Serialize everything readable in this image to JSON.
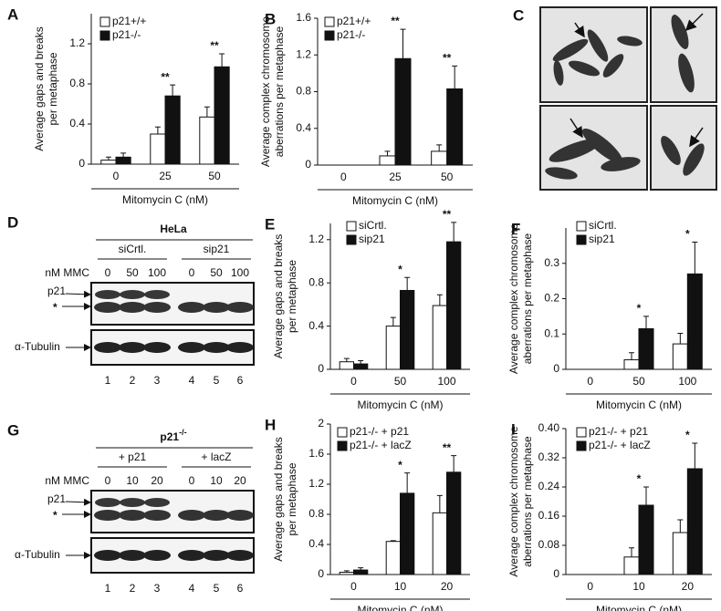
{
  "chart_data": [
    {
      "type": "bar",
      "panel": "A",
      "ylabel": [
        "Average gaps and breaks",
        "per metaphase"
      ],
      "xlabel": "Mitomycin C (nM)",
      "categories": [
        "0",
        "25",
        "50"
      ],
      "ylim": [
        0,
        1.5
      ],
      "yticks": [
        0,
        0.4,
        0.8,
        1.2
      ],
      "series": [
        {
          "name": "p21+/+",
          "color": "#ffffff",
          "values": [
            0.04,
            0.3,
            0.47
          ],
          "errors": [
            0.03,
            0.07,
            0.1
          ]
        },
        {
          "name": "p21-/-",
          "color": "#111111",
          "values": [
            0.07,
            0.68,
            0.97
          ],
          "errors": [
            0.04,
            0.11,
            0.13
          ]
        }
      ],
      "annotations": [
        null,
        "**",
        "**"
      ]
    },
    {
      "type": "bar",
      "panel": "B",
      "ylabel": [
        "Average complex chromosome",
        "aberrations per metaphase"
      ],
      "xlabel": "Mitomycin C (nM)",
      "categories": [
        "0",
        "25",
        "50"
      ],
      "ylim": [
        0,
        1.6
      ],
      "yticks": [
        0,
        0.4,
        0.8,
        1.2,
        1.6
      ],
      "series": [
        {
          "name": "p21+/+",
          "color": "#ffffff",
          "values": [
            0,
            0.1,
            0.15
          ],
          "errors": [
            0,
            0.05,
            0.07
          ]
        },
        {
          "name": "p21-/-",
          "color": "#111111",
          "values": [
            0,
            1.16,
            0.83
          ],
          "errors": [
            0,
            0.32,
            0.25
          ]
        }
      ],
      "annotations": [
        null,
        "**",
        "**"
      ]
    },
    {
      "type": "bar",
      "panel": "E",
      "ylabel": [
        "Average gaps and breaks",
        "per metaphase"
      ],
      "xlabel": "Mitomycin C (nM)",
      "categories": [
        "0",
        "50",
        "100"
      ],
      "ylim": [
        0,
        1.35
      ],
      "yticks": [
        0,
        0.4,
        0.8,
        1.2
      ],
      "series": [
        {
          "name": "siCrtl.",
          "color": "#ffffff",
          "values": [
            0.07,
            0.4,
            0.59
          ],
          "errors": [
            0.03,
            0.08,
            0.1
          ]
        },
        {
          "name": "sip21",
          "color": "#111111",
          "values": [
            0.05,
            0.73,
            1.18
          ],
          "errors": [
            0.03,
            0.12,
            0.18
          ]
        }
      ],
      "annotations": [
        null,
        "*",
        "**"
      ]
    },
    {
      "type": "bar",
      "panel": "F",
      "ylabel": [
        "Average complex chromosome",
        "aberrations per metaphase"
      ],
      "xlabel": "Mitomycin C (nM)",
      "categories": [
        "0",
        "50",
        "100"
      ],
      "ylim": [
        0,
        0.4
      ],
      "yticks": [
        0,
        0.1,
        0.2,
        0.3
      ],
      "series": [
        {
          "name": "siCrtl.",
          "color": "#ffffff",
          "values": [
            0,
            0.027,
            0.072
          ],
          "errors": [
            0,
            0.02,
            0.03
          ]
        },
        {
          "name": "sip21",
          "color": "#111111",
          "values": [
            0,
            0.115,
            0.27
          ],
          "errors": [
            0,
            0.035,
            0.09
          ]
        }
      ],
      "annotations": [
        null,
        "*",
        "*"
      ]
    },
    {
      "type": "bar",
      "panel": "H",
      "ylabel": [
        "Average gaps and breaks",
        "per metaphase"
      ],
      "xlabel": "Mitomycin C (nM)",
      "categories": [
        "0",
        "10",
        "20"
      ],
      "ylim": [
        0,
        2
      ],
      "yticks": [
        0,
        0.4,
        0.8,
        1.2,
        1.6,
        2
      ],
      "series": [
        {
          "name": "p21-/- + p21",
          "color": "#ffffff",
          "values": [
            0.03,
            0.44,
            0.82
          ],
          "errors": [
            0.02,
            0.01,
            0.23
          ]
        },
        {
          "name": "p21-/- + lacZ",
          "color": "#111111",
          "values": [
            0.06,
            1.08,
            1.36
          ],
          "errors": [
            0.03,
            0.27,
            0.22
          ]
        }
      ],
      "annotations": [
        null,
        "*",
        "**"
      ]
    },
    {
      "type": "bar",
      "panel": "I",
      "ylabel": [
        "Average complex chromosome",
        "aberrations per metaphase"
      ],
      "xlabel": "Mitomycin C (nM)",
      "categories": [
        "0",
        "10",
        "20"
      ],
      "ylim": [
        0,
        0.4
      ],
      "yticks": [
        0,
        0.08,
        0.16,
        0.24,
        0.32,
        {
          "value": 0.4,
          "label": "0.40"
        }
      ],
      "series": [
        {
          "name": "p21-/- + p21",
          "color": "#ffffff",
          "values": [
            0,
            0.048,
            0.115
          ],
          "errors": [
            0,
            0.025,
            0.035
          ]
        },
        {
          "name": "p21-/- + lacZ",
          "color": "#111111",
          "values": [
            0,
            0.19,
            0.29
          ],
          "errors": [
            0,
            0.05,
            0.07
          ]
        }
      ],
      "annotations": [
        null,
        "*",
        "*"
      ]
    }
  ],
  "images": {
    "panel": "C"
  },
  "blots": [
    {
      "panel": "D",
      "title": "HeLa",
      "groups": [
        "siCrtl.",
        "sip21"
      ],
      "dose_label": "nM MMC",
      "doses": [
        "0",
        "50",
        "100",
        "0",
        "50",
        "100"
      ],
      "bands": [
        "p21",
        "*"
      ],
      "loading": "α-Tubulin",
      "lanes": [
        "1",
        "2",
        "3",
        "4",
        "5",
        "6"
      ]
    },
    {
      "panel": "G",
      "title": "p21",
      "title_sup": "-/-",
      "groups": [
        "+ p21",
        "+ lacZ"
      ],
      "dose_label": "nM MMC",
      "doses": [
        "0",
        "10",
        "20",
        "0",
        "10",
        "20"
      ],
      "bands": [
        "p21",
        "*"
      ],
      "loading": "α-Tubulin",
      "lanes": [
        "1",
        "2",
        "3",
        "4",
        "5",
        "6"
      ]
    }
  ]
}
